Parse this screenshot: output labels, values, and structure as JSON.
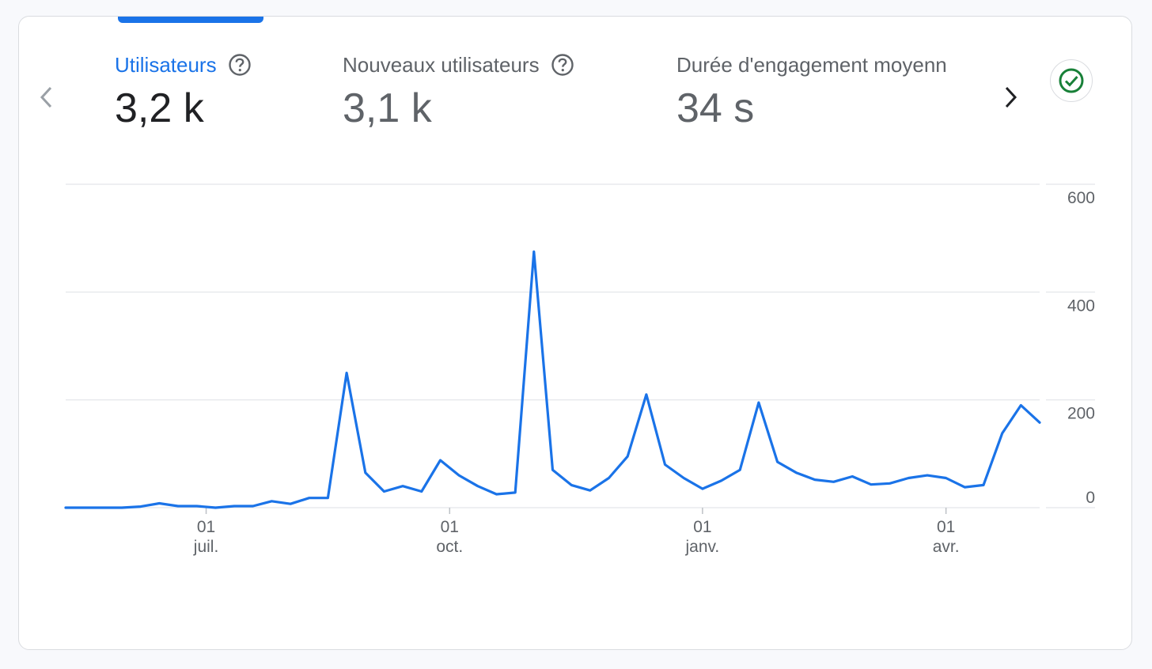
{
  "colors": {
    "accent": "#1a73e8",
    "line": "#1a73e8",
    "grid": "#e8eaed",
    "success": "#188038"
  },
  "icons": {
    "prev": "chevron-left-icon",
    "next": "chevron-right-icon",
    "help": "help-circle-icon",
    "status": "check-circle-icon"
  },
  "metrics": [
    {
      "label": "Utilisateurs",
      "value": "3,2 k",
      "active": true
    },
    {
      "label": "Nouveaux utilisateurs",
      "value": "3,1 k",
      "active": false
    },
    {
      "label": "Durée d'engagement moyenn",
      "value": "34 s",
      "active": false
    }
  ],
  "chart_data": {
    "type": "line",
    "ylim": [
      0,
      600
    ],
    "y_ticks": [
      0,
      200,
      400,
      600
    ],
    "grid": true,
    "x_ticks": [
      {
        "index": 7.5,
        "day": "01",
        "month": "juil."
      },
      {
        "index": 20.5,
        "day": "01",
        "month": "oct."
      },
      {
        "index": 34,
        "day": "01",
        "month": "janv."
      },
      {
        "index": 47,
        "day": "01",
        "month": "avr."
      }
    ],
    "series": [
      {
        "values": [
          0,
          0,
          0,
          0,
          2,
          8,
          3,
          3,
          0,
          3,
          3,
          12,
          7,
          18,
          18,
          250,
          65,
          30,
          40,
          30,
          88,
          60,
          40,
          25,
          28,
          475,
          70,
          42,
          32,
          55,
          95,
          210,
          80,
          55,
          35,
          50,
          70,
          195,
          85,
          65,
          52,
          48,
          58,
          43,
          45,
          55,
          60,
          55,
          38,
          42,
          138,
          190,
          158
        ]
      }
    ]
  }
}
